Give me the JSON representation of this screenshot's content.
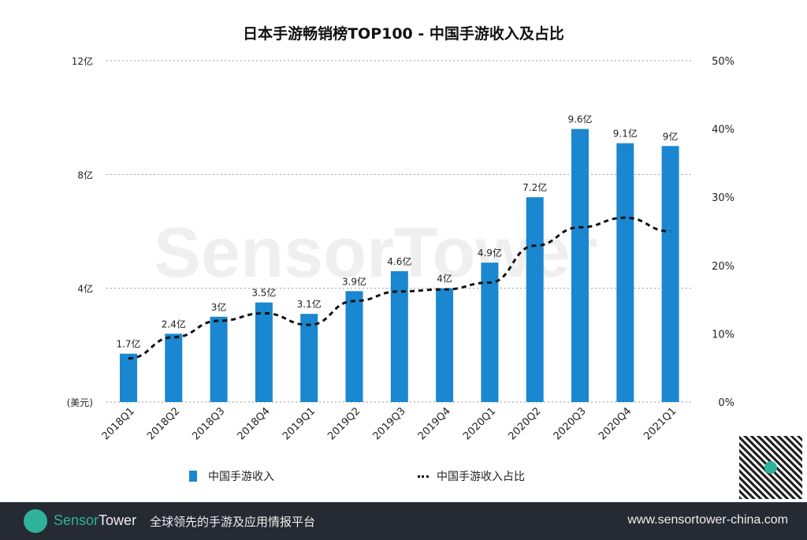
{
  "chart_data": {
    "type": "bar+line",
    "title": "日本手游畅销榜TOP100 - 中国手游收入及占比",
    "categories": [
      "2018Q1",
      "2018Q2",
      "2018Q3",
      "2018Q4",
      "2019Q1",
      "2019Q2",
      "2019Q3",
      "2019Q4",
      "2020Q1",
      "2020Q2",
      "2020Q3",
      "2020Q4",
      "2021Q1"
    ],
    "series": [
      {
        "name": "中国手游收入",
        "type": "bar",
        "axis": "left",
        "color": "#1a87d0",
        "values": [
          1.7,
          2.4,
          3,
          3.5,
          3.1,
          3.9,
          4.6,
          4,
          4.9,
          7.2,
          9.6,
          9.1,
          9
        ],
        "labels": [
          "1.7亿",
          "2.4亿",
          "3亿",
          "3.5亿",
          "3.1亿",
          "3.9亿",
          "4.6亿",
          "4亿",
          "4.9亿",
          "7.2亿",
          "9.6亿",
          "9.1亿",
          "9亿"
        ]
      },
      {
        "name": "中国手游收入占比",
        "type": "line",
        "style": "dashed",
        "axis": "right",
        "color": "#111111",
        "values": [
          6.4,
          9.5,
          11.9,
          13.0,
          11.3,
          14.8,
          16.2,
          16.5,
          17.5,
          22.9,
          25.6,
          27.0,
          25.0
        ]
      }
    ],
    "left_axis": {
      "ylim": [
        0,
        12
      ],
      "ticks": [
        0,
        4,
        8,
        12
      ],
      "tick_labels": [
        "(美元)",
        "4亿",
        "8亿",
        "12亿"
      ]
    },
    "right_axis": {
      "ylim": [
        0,
        50
      ],
      "ticks": [
        0,
        10,
        20,
        30,
        40,
        50
      ],
      "tick_labels": [
        "0%",
        "10%",
        "20%",
        "30%",
        "40%",
        "50%"
      ]
    },
    "grid": "horizontal dotted",
    "legend": "bottom"
  },
  "watermark": "SensorTower",
  "footer": {
    "brand_a": "Sensor",
    "brand_b": "Tower",
    "slogan": "全球领先的手游及应用情报平台",
    "url": "www.sensortower-china.com"
  }
}
